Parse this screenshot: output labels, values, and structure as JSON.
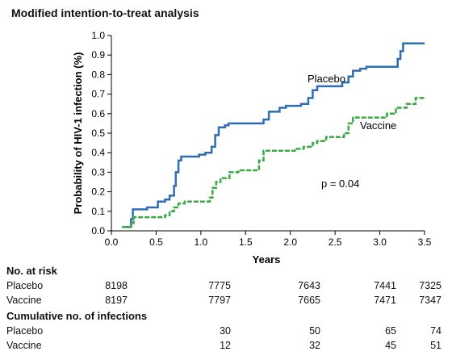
{
  "title": "Modified intention-to-treat analysis",
  "chart_data": {
    "type": "line",
    "xlabel": "Years",
    "ylabel": "Probability of HIV-1 infection (%)",
    "xlim": [
      0,
      3.5
    ],
    "ylim": [
      0,
      1.0
    ],
    "xticks": [
      "0.0",
      "0.5",
      "1.0",
      "1.5",
      "2.0",
      "2.5",
      "3.0",
      "3.5"
    ],
    "yticks": [
      "0.0",
      "0.1",
      "0.2",
      "0.3",
      "0.4",
      "0.5",
      "0.6",
      "0.7",
      "0.8",
      "0.9",
      "1.0"
    ],
    "annotation": "p = 0.04",
    "series": [
      {
        "name": "Placebo",
        "color": "#2e6db4",
        "style": "solid",
        "points": [
          [
            0.12,
            0.02
          ],
          [
            0.22,
            0.02
          ],
          [
            0.22,
            0.06
          ],
          [
            0.24,
            0.06
          ],
          [
            0.24,
            0.11
          ],
          [
            0.4,
            0.11
          ],
          [
            0.4,
            0.12
          ],
          [
            0.52,
            0.12
          ],
          [
            0.52,
            0.15
          ],
          [
            0.6,
            0.15
          ],
          [
            0.6,
            0.16
          ],
          [
            0.65,
            0.16
          ],
          [
            0.65,
            0.18
          ],
          [
            0.7,
            0.18
          ],
          [
            0.7,
            0.23
          ],
          [
            0.72,
            0.23
          ],
          [
            0.72,
            0.3
          ],
          [
            0.75,
            0.3
          ],
          [
            0.75,
            0.36
          ],
          [
            0.78,
            0.36
          ],
          [
            0.78,
            0.38
          ],
          [
            0.98,
            0.38
          ],
          [
            0.98,
            0.39
          ],
          [
            1.05,
            0.39
          ],
          [
            1.05,
            0.4
          ],
          [
            1.12,
            0.4
          ],
          [
            1.12,
            0.43
          ],
          [
            1.16,
            0.43
          ],
          [
            1.16,
            0.49
          ],
          [
            1.2,
            0.49
          ],
          [
            1.2,
            0.53
          ],
          [
            1.27,
            0.53
          ],
          [
            1.27,
            0.54
          ],
          [
            1.31,
            0.54
          ],
          [
            1.31,
            0.55
          ],
          [
            1.7,
            0.55
          ],
          [
            1.7,
            0.57
          ],
          [
            1.76,
            0.57
          ],
          [
            1.76,
            0.61
          ],
          [
            1.88,
            0.61
          ],
          [
            1.88,
            0.63
          ],
          [
            1.95,
            0.63
          ],
          [
            1.95,
            0.64
          ],
          [
            2.12,
            0.64
          ],
          [
            2.12,
            0.65
          ],
          [
            2.2,
            0.65
          ],
          [
            2.2,
            0.68
          ],
          [
            2.25,
            0.68
          ],
          [
            2.25,
            0.72
          ],
          [
            2.3,
            0.72
          ],
          [
            2.3,
            0.74
          ],
          [
            2.58,
            0.74
          ],
          [
            2.58,
            0.76
          ],
          [
            2.65,
            0.76
          ],
          [
            2.65,
            0.79
          ],
          [
            2.7,
            0.79
          ],
          [
            2.7,
            0.82
          ],
          [
            2.78,
            0.82
          ],
          [
            2.78,
            0.83
          ],
          [
            2.85,
            0.83
          ],
          [
            2.85,
            0.84
          ],
          [
            3.2,
            0.84
          ],
          [
            3.2,
            0.88
          ],
          [
            3.23,
            0.88
          ],
          [
            3.23,
            0.92
          ],
          [
            3.26,
            0.92
          ],
          [
            3.26,
            0.96
          ],
          [
            3.5,
            0.96
          ]
        ]
      },
      {
        "name": "Vaccine",
        "color": "#3aa845",
        "style": "dashed",
        "points": [
          [
            0.12,
            0.02
          ],
          [
            0.22,
            0.02
          ],
          [
            0.22,
            0.04
          ],
          [
            0.25,
            0.04
          ],
          [
            0.25,
            0.07
          ],
          [
            0.6,
            0.07
          ],
          [
            0.6,
            0.08
          ],
          [
            0.65,
            0.08
          ],
          [
            0.65,
            0.1
          ],
          [
            0.7,
            0.1
          ],
          [
            0.7,
            0.12
          ],
          [
            0.75,
            0.12
          ],
          [
            0.75,
            0.14
          ],
          [
            0.82,
            0.14
          ],
          [
            0.82,
            0.15
          ],
          [
            1.1,
            0.15
          ],
          [
            1.1,
            0.17
          ],
          [
            1.13,
            0.17
          ],
          [
            1.13,
            0.22
          ],
          [
            1.17,
            0.22
          ],
          [
            1.17,
            0.25
          ],
          [
            1.22,
            0.25
          ],
          [
            1.22,
            0.27
          ],
          [
            1.32,
            0.27
          ],
          [
            1.32,
            0.3
          ],
          [
            1.42,
            0.3
          ],
          [
            1.42,
            0.31
          ],
          [
            1.65,
            0.31
          ],
          [
            1.65,
            0.36
          ],
          [
            1.7,
            0.36
          ],
          [
            1.7,
            0.41
          ],
          [
            2.05,
            0.41
          ],
          [
            2.05,
            0.42
          ],
          [
            2.15,
            0.42
          ],
          [
            2.15,
            0.43
          ],
          [
            2.25,
            0.43
          ],
          [
            2.25,
            0.45
          ],
          [
            2.3,
            0.45
          ],
          [
            2.3,
            0.46
          ],
          [
            2.4,
            0.46
          ],
          [
            2.4,
            0.48
          ],
          [
            2.6,
            0.48
          ],
          [
            2.6,
            0.5
          ],
          [
            2.65,
            0.5
          ],
          [
            2.65,
            0.55
          ],
          [
            2.7,
            0.55
          ],
          [
            2.7,
            0.58
          ],
          [
            3.08,
            0.58
          ],
          [
            3.08,
            0.6
          ],
          [
            3.18,
            0.6
          ],
          [
            3.18,
            0.63
          ],
          [
            3.3,
            0.63
          ],
          [
            3.3,
            0.65
          ],
          [
            3.4,
            0.65
          ],
          [
            3.4,
            0.68
          ],
          [
            3.5,
            0.68
          ]
        ]
      }
    ]
  },
  "tables": {
    "risk_header": "No. at risk",
    "risk_rows": [
      {
        "name": "Placebo",
        "values": [
          "8198",
          "7775",
          "7643",
          "7441",
          "7325"
        ]
      },
      {
        "name": "Vaccine",
        "values": [
          "8197",
          "7797",
          "7665",
          "7471",
          "7347"
        ]
      }
    ],
    "cum_header": "Cumulative no. of infections",
    "cum_rows": [
      {
        "name": "Placebo",
        "values": [
          "",
          "30",
          "50",
          "65",
          "74"
        ]
      },
      {
        "name": "Vaccine",
        "values": [
          "",
          "12",
          "32",
          "45",
          "51"
        ]
      }
    ]
  }
}
